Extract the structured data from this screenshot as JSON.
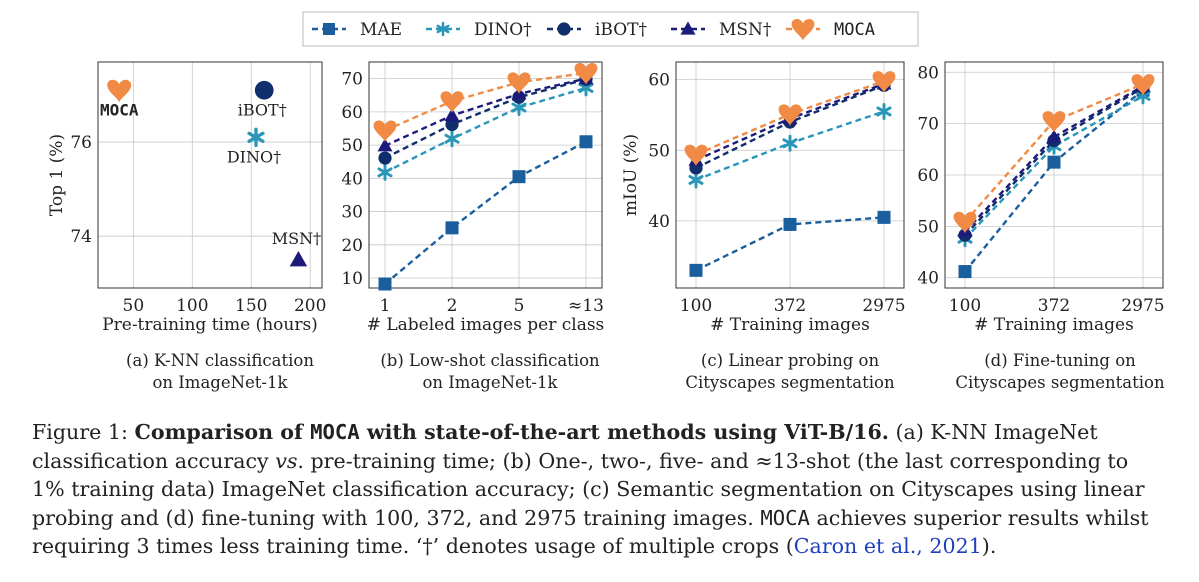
{
  "legend": {
    "entries": [
      {
        "name": "MAE",
        "color": "#1a5e9e",
        "marker": "square",
        "dash": "6,4",
        "mono": false
      },
      {
        "name": "DINO†",
        "color": "#2a96b8",
        "marker": "star",
        "dash": "6,4",
        "mono": false
      },
      {
        "name": "iBOT†",
        "color": "#0f2e6b",
        "marker": "circle",
        "dash": "6,4",
        "mono": false
      },
      {
        "name": "MSN†",
        "color": "#1c1b7a",
        "marker": "triangle",
        "dash": "6,4",
        "mono": false
      },
      {
        "name": "MOCA",
        "color": "#f08a44",
        "marker": "heart",
        "dash": "6,4",
        "mono": true
      }
    ]
  },
  "chart_data": [
    {
      "id": "a",
      "type": "scatter",
      "xlabel": "Pre-training time (hours)",
      "ylabel": "Top 1 (%)",
      "xlim": [
        20,
        210
      ],
      "ylim": [
        72.9,
        77.7
      ],
      "xticks": [
        50,
        100,
        150,
        200
      ],
      "yticks": [
        74,
        76
      ],
      "grid": true,
      "points": [
        {
          "series": "MOCA",
          "x": 38,
          "y": 77.1,
          "label": "MOCA"
        },
        {
          "series": "iBOT†",
          "x": 161,
          "y": 77.1,
          "label": "iBOT†"
        },
        {
          "series": "DINO†",
          "x": 154,
          "y": 76.1,
          "label": "DINO†"
        },
        {
          "series": "MSN†",
          "x": 190,
          "y": 73.5,
          "label": "MSN†"
        }
      ],
      "caption": [
        "(a) K-NN classification",
        "on ImageNet-1k"
      ]
    },
    {
      "id": "b",
      "type": "line",
      "xlabel": "# Labeled images per class",
      "ylabel": "",
      "categories": [
        "1",
        "2",
        "5",
        "≈13"
      ],
      "ylim": [
        7,
        75
      ],
      "yticks": [
        10,
        20,
        30,
        40,
        50,
        60,
        70
      ],
      "grid": true,
      "series": [
        {
          "name": "MAE",
          "values": [
            8.2,
            25.1,
            40.5,
            51.0
          ]
        },
        {
          "name": "DINO†",
          "values": [
            41.8,
            51.9,
            61.3,
            67.2
          ]
        },
        {
          "name": "iBOT†",
          "values": [
            46.1,
            56.2,
            64.4,
            69.8
          ]
        },
        {
          "name": "MSN†",
          "values": [
            49.8,
            58.9,
            65.4,
            70.0
          ]
        },
        {
          "name": "MOCA",
          "values": [
            54.4,
            63.2,
            68.9,
            71.7
          ]
        }
      ],
      "caption": [
        "(b) Low-shot classification",
        "on ImageNet-1k"
      ]
    },
    {
      "id": "c",
      "type": "line",
      "xlabel": "# Training images",
      "ylabel": "mIoU (%)",
      "categories": [
        "100",
        "372",
        "2975"
      ],
      "ylim": [
        30.5,
        62.5
      ],
      "yticks": [
        40,
        50,
        60
      ],
      "grid": true,
      "series": [
        {
          "name": "MAE",
          "values": [
            33.0,
            39.5,
            40.5
          ]
        },
        {
          "name": "DINO†",
          "values": [
            45.8,
            51.0,
            55.5
          ]
        },
        {
          "name": "iBOT†",
          "values": [
            47.5,
            54.0,
            59.2
          ]
        },
        {
          "name": "MSN†",
          "values": [
            48.6,
            54.5,
            59.4
          ]
        },
        {
          "name": "MOCA",
          "values": [
            49.4,
            55.1,
            59.8
          ]
        }
      ],
      "caption": [
        "(c) Linear probing on",
        "Cityscapes segmentation"
      ]
    },
    {
      "id": "d",
      "type": "line",
      "xlabel": "# Training images",
      "ylabel": "",
      "categories": [
        "100",
        "372",
        "2975"
      ],
      "ylim": [
        38,
        82
      ],
      "yticks": [
        40,
        50,
        60,
        70,
        80
      ],
      "grid": true,
      "series": [
        {
          "name": "MAE",
          "values": [
            41.2,
            62.5,
            76.5
          ]
        },
        {
          "name": "DINO†",
          "values": [
            47.6,
            65.6,
            75.4
          ]
        },
        {
          "name": "iBOT†",
          "values": [
            48.3,
            66.7,
            77.0
          ]
        },
        {
          "name": "MSN†",
          "values": [
            49.0,
            67.4,
            77.3
          ]
        },
        {
          "name": "MOCA",
          "values": [
            50.9,
            70.5,
            77.7
          ]
        }
      ],
      "caption": [
        "(d) Fine-tuning on",
        "Cityscapes segmentation"
      ]
    }
  ],
  "caption": {
    "lines": [
      [
        {
          "t": "Figure 1: "
        },
        {
          "t": "Comparison of ",
          "b": true
        },
        {
          "t": "MOCA",
          "b": true,
          "m": true
        },
        {
          "t": " with state-of-the-art methods using ViT-B/16.",
          "b": true
        },
        {
          "t": " (a) K-NN ImageNet"
        }
      ],
      [
        {
          "t": "classification accuracy "
        },
        {
          "t": "vs",
          "i": true
        },
        {
          "t": ". pre-training time; (b) One-, two-, five- and ≈13-shot (the last corresponding to"
        }
      ],
      [
        {
          "t": "1% training data) ImageNet classification accuracy; (c) Semantic segmentation on Cityscapes using linear"
        }
      ],
      [
        {
          "t": "probing and (d) fine-tuning with 100, 372, and 2975 training images. "
        },
        {
          "t": "MOCA",
          "m": true
        },
        {
          "t": " achieves superior results whilst"
        }
      ],
      [
        {
          "t": "requiring 3 times less training time. ‘†’ denotes usage of multiple crops ("
        },
        {
          "t": "Caron et al., 2021",
          "c": true
        },
        {
          "t": ")."
        }
      ]
    ]
  }
}
